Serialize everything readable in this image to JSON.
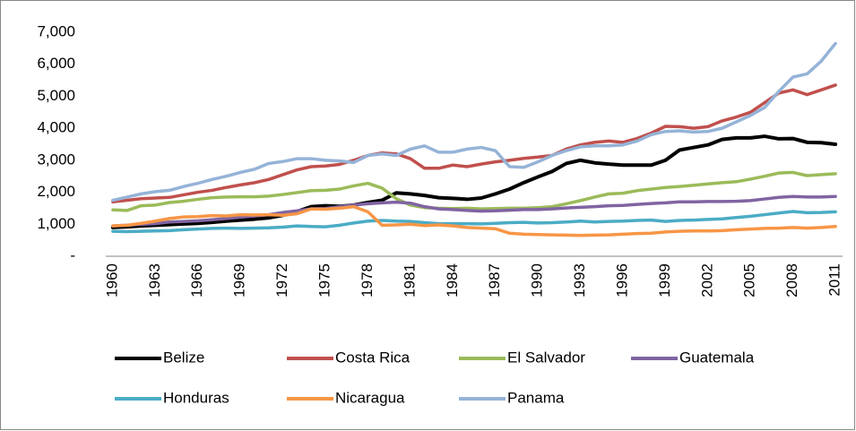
{
  "chart_data": {
    "type": "line",
    "categories": [
      "1960",
      null,
      null,
      "1963",
      null,
      null,
      "1966",
      null,
      null,
      "1969",
      null,
      null,
      "1972",
      null,
      null,
      "1975",
      null,
      null,
      "1978",
      null,
      null,
      "1981",
      null,
      null,
      "1984",
      null,
      null,
      "1987",
      null,
      null,
      "1990",
      null,
      null,
      "1993",
      null,
      null,
      "1996",
      null,
      null,
      "1999",
      null,
      null,
      "2002",
      null,
      null,
      "2005",
      null,
      null,
      "2008",
      null,
      null,
      "2011"
    ],
    "series": [
      {
        "name": "Belize",
        "color": "#000000",
        "values": [
          900,
          920,
          950,
          970,
          990,
          1010,
          1030,
          1060,
          1100,
          1130,
          1160,
          1200,
          1280,
          1400,
          1550,
          1580,
          1560,
          1600,
          1680,
          1750,
          1980,
          1950,
          1900,
          1830,
          1810,
          1780,
          1820,
          1950,
          2100,
          2300,
          2480,
          2650,
          2900,
          3000,
          2920,
          2880,
          2850,
          2850,
          2850,
          3000,
          3320,
          3400,
          3480,
          3650,
          3700,
          3700,
          3750,
          3670,
          3680,
          3560,
          3550,
          3500
        ]
      },
      {
        "name": "Costa Rica",
        "color": "#c0504d",
        "values": [
          1700,
          1750,
          1800,
          1820,
          1840,
          1920,
          2000,
          2060,
          2150,
          2230,
          2300,
          2400,
          2550,
          2700,
          2800,
          2820,
          2870,
          3000,
          3150,
          3230,
          3200,
          3050,
          2750,
          2750,
          2850,
          2800,
          2880,
          2950,
          3000,
          3060,
          3100,
          3150,
          3350,
          3480,
          3560,
          3600,
          3560,
          3680,
          3850,
          4060,
          4050,
          4000,
          4050,
          4230,
          4350,
          4500,
          4800,
          5100,
          5200,
          5050,
          5200,
          5350
        ]
      },
      {
        "name": "El Salvador",
        "color": "#9bbb59",
        "values": [
          1450,
          1430,
          1580,
          1600,
          1680,
          1720,
          1780,
          1830,
          1850,
          1860,
          1860,
          1880,
          1930,
          1990,
          2050,
          2060,
          2100,
          2200,
          2280,
          2130,
          1800,
          1600,
          1520,
          1500,
          1490,
          1500,
          1480,
          1490,
          1500,
          1500,
          1520,
          1550,
          1640,
          1740,
          1850,
          1950,
          1970,
          2050,
          2100,
          2150,
          2180,
          2220,
          2260,
          2300,
          2330,
          2410,
          2500,
          2600,
          2620,
          2520,
          2550,
          2580
        ]
      },
      {
        "name": "Guatemala",
        "color": "#8064a2",
        "values": [
          950,
          970,
          1000,
          1020,
          1070,
          1090,
          1110,
          1140,
          1180,
          1220,
          1260,
          1300,
          1370,
          1420,
          1480,
          1490,
          1550,
          1600,
          1640,
          1670,
          1690,
          1660,
          1550,
          1480,
          1460,
          1430,
          1410,
          1420,
          1440,
          1460,
          1460,
          1480,
          1510,
          1530,
          1550,
          1580,
          1590,
          1620,
          1650,
          1670,
          1700,
          1700,
          1710,
          1710,
          1720,
          1740,
          1790,
          1840,
          1870,
          1850,
          1850,
          1870
        ]
      },
      {
        "name": "Honduras",
        "color": "#4bacc6",
        "values": [
          780,
          770,
          780,
          790,
          800,
          830,
          850,
          870,
          880,
          870,
          880,
          890,
          910,
          950,
          930,
          920,
          970,
          1040,
          1100,
          1120,
          1100,
          1090,
          1050,
          1020,
          1020,
          1020,
          1010,
          1030,
          1050,
          1060,
          1040,
          1050,
          1070,
          1100,
          1070,
          1090,
          1100,
          1120,
          1130,
          1090,
          1120,
          1130,
          1150,
          1170,
          1210,
          1250,
          1300,
          1350,
          1400,
          1360,
          1370,
          1390
        ]
      },
      {
        "name": "Nicaragua",
        "color": "#f79646",
        "values": [
          950,
          970,
          1030,
          1100,
          1180,
          1230,
          1240,
          1270,
          1260,
          1300,
          1290,
          1300,
          1280,
          1330,
          1480,
          1470,
          1500,
          1550,
          1390,
          970,
          980,
          1000,
          960,
          980,
          950,
          900,
          880,
          860,
          720,
          690,
          680,
          670,
          660,
          650,
          660,
          670,
          690,
          710,
          720,
          760,
          780,
          790,
          790,
          800,
          830,
          850,
          870,
          880,
          900,
          880,
          900,
          930
        ]
      },
      {
        "name": "Panama",
        "color": "#95b3d7",
        "values": [
          1750,
          1850,
          1950,
          2020,
          2060,
          2180,
          2280,
          2400,
          2500,
          2620,
          2720,
          2900,
          2960,
          3050,
          3050,
          3000,
          2980,
          2930,
          3150,
          3200,
          3150,
          3350,
          3450,
          3250,
          3250,
          3350,
          3400,
          3300,
          2800,
          2780,
          2950,
          3150,
          3300,
          3420,
          3450,
          3450,
          3480,
          3600,
          3800,
          3900,
          3920,
          3880,
          3900,
          4000,
          4200,
          4400,
          4650,
          5150,
          5600,
          5700,
          6100,
          6650
        ]
      }
    ],
    "ylim": [
      0,
      7000
    ],
    "yticks": [
      {
        "value": 0,
        "label": "-"
      },
      {
        "value": 1000,
        "label": "1,000"
      },
      {
        "value": 2000,
        "label": "2,000"
      },
      {
        "value": 3000,
        "label": "3,000"
      },
      {
        "value": 4000,
        "label": "4,000"
      },
      {
        "value": 5000,
        "label": "5,000"
      },
      {
        "value": 6000,
        "label": "6,000"
      },
      {
        "value": 7000,
        "label": "7,000"
      }
    ],
    "grid": false,
    "legend": "bottom"
  }
}
